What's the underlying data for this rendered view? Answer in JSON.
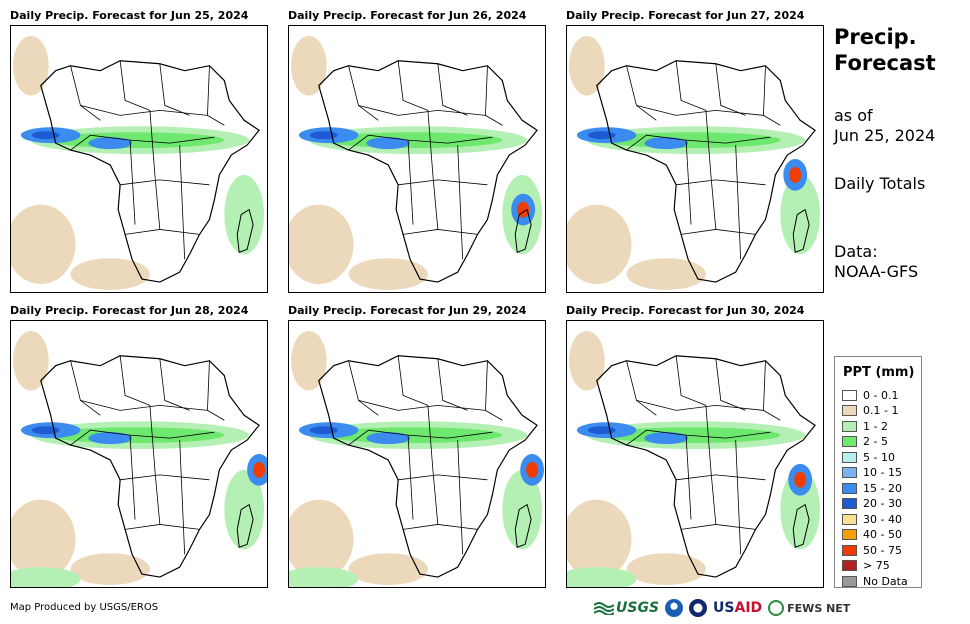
{
  "panels": [
    {
      "title": "Daily Precip. Forecast for Jun 25, 2024"
    },
    {
      "title": "Daily Precip. Forecast for Jun 26, 2024"
    },
    {
      "title": "Daily Precip. Forecast for Jun 27, 2024"
    },
    {
      "title": "Daily Precip. Forecast for Jun 28, 2024"
    },
    {
      "title": "Daily Precip. Forecast for Jun 29, 2024"
    },
    {
      "title": "Daily Precip. Forecast for Jun 30, 2024"
    }
  ],
  "sidebar": {
    "title_line1": "Precip.",
    "title_line2": "Forecast",
    "asof_line1": "as of",
    "asof_line2": "Jun 25, 2024",
    "totals": "Daily Totals",
    "data_line1": "Data:",
    "data_line2": "NOAA-GFS"
  },
  "legend": {
    "title": "PPT (mm)",
    "items": [
      {
        "label": "0 - 0.1",
        "color": "#ffffff"
      },
      {
        "label": "0.1 - 1",
        "color": "#ecd9bc"
      },
      {
        "label": "1 - 2",
        "color": "#b4f0b4"
      },
      {
        "label": "2 - 5",
        "color": "#6ee86e"
      },
      {
        "label": "5 - 10",
        "color": "#b4f0f0"
      },
      {
        "label": "10 - 15",
        "color": "#78b4f0"
      },
      {
        "label": "15 - 20",
        "color": "#3c8cf0"
      },
      {
        "label": "20 - 30",
        "color": "#1e5ad2"
      },
      {
        "label": "30 - 40",
        "color": "#f8e08c"
      },
      {
        "label": "40 - 50",
        "color": "#f5a000"
      },
      {
        "label": "50 - 75",
        "color": "#f03c00"
      },
      {
        "label": "> 75",
        "color": "#b41e1e"
      },
      {
        "label": "No Data",
        "color": "#999999"
      }
    ]
  },
  "footer": {
    "credit": "Map Produced by USGS/EROS",
    "logo_usgs": "USGS",
    "logo_usaid_prefix": "US",
    "logo_usaid_suffix": "AID",
    "logo_fews": "FEWS NET"
  },
  "colors": {
    "sand": "#ecd9bc",
    "light_green": "#b4f0b4",
    "green": "#6ee86e",
    "blue": "#3c8cf0",
    "dark_blue": "#1e5ad2",
    "red": "#f03c00"
  }
}
